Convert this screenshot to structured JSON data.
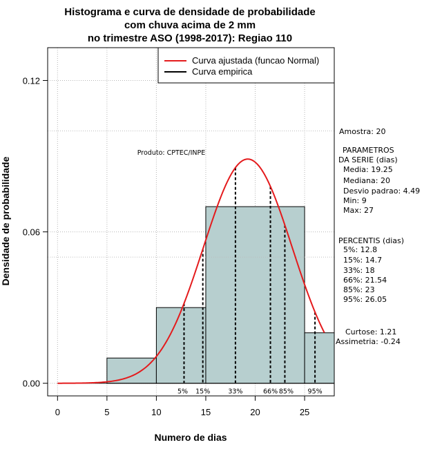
{
  "chart_data": {
    "type": "bar",
    "title": [
      "Histograma e curva de densidade de probabilidade",
      "com chuva acima de 2 mm",
      "no trimestre ASO (1998-2017): Regiao 110"
    ],
    "xlabel": "Numero de dias",
    "ylabel": "Densidade de probabilidade",
    "xlim": [
      -1,
      28
    ],
    "ylim": [
      -0.005,
      0.133
    ],
    "xticks": [
      0,
      5,
      10,
      15,
      20,
      25
    ],
    "yticks": [
      0.0,
      0.06,
      0.12
    ],
    "ytick_labels": [
      "0.00",
      "0.06",
      "0.12"
    ],
    "bins": [
      {
        "start": 5,
        "end": 10,
        "density": 0.01
      },
      {
        "start": 10,
        "end": 15,
        "density": 0.03
      },
      {
        "start": 15,
        "end": 25,
        "density": 0.07
      },
      {
        "start": 25,
        "end": 28,
        "density": 0.02
      }
    ],
    "normal_fit": {
      "mean": 19.25,
      "sd": 4.49,
      "x_range": [
        0,
        27
      ],
      "color": "#e41a1c"
    },
    "percentiles": [
      {
        "label": "5%",
        "value": 12.8
      },
      {
        "label": "15%",
        "value": 14.7
      },
      {
        "label": "33%",
        "value": 18
      },
      {
        "label": "66%",
        "value": 21.54
      },
      {
        "label": "85%",
        "value": 23
      },
      {
        "label": "95%",
        "value": 26.05
      }
    ],
    "hlines": [
      0.1,
      0.05
    ],
    "bar_color": "#b7cfcf",
    "legend": [
      {
        "label": "Curva ajustada (funcao Normal)",
        "color": "#e41a1c"
      },
      {
        "label": "Curva empirica",
        "color": "#000000"
      }
    ],
    "legend_position": "top-right",
    "annotation": "Produto: CPTEC/INPE"
  },
  "side_panel": {
    "amostra": "Amostra: 20",
    "param_title_1": "PARAMETROS",
    "param_title_2": "DA SERIE (dias)",
    "params": [
      "Media: 19.25",
      "Mediana: 20",
      "Desvio padrao: 4.49",
      "Min: 9",
      "Max: 27"
    ],
    "perc_title": "PERCENTIS (dias)",
    "percs": [
      "5%: 12.8",
      "15%: 14.7",
      "33%: 18",
      "66%: 21.54",
      "85%: 23",
      "95%: 26.05"
    ],
    "curtose": "Curtose: 1.21",
    "assimetria": "Assimetria: -0.24"
  }
}
